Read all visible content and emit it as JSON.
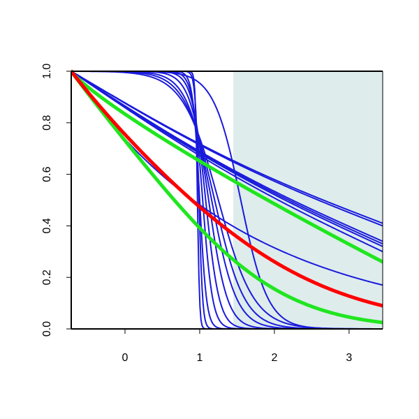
{
  "chart_data": {
    "type": "line",
    "title": "",
    "xlabel": "",
    "ylabel": "",
    "xlim": [
      -0.72,
      3.45
    ],
    "ylim": [
      0,
      1
    ],
    "x_ticks": [
      0,
      1,
      2,
      3
    ],
    "y_ticks": [
      0.0,
      0.2,
      0.4,
      0.6,
      0.8,
      1.0
    ],
    "x_tick_labels": [
      "0",
      "1",
      "2",
      "3"
    ],
    "y_tick_labels": [
      "0.0",
      "0.2",
      "0.4",
      "0.6",
      "0.8",
      "1.0"
    ],
    "grid": false,
    "shaded_region": {
      "x_from": 1.45,
      "x_to": 3.45,
      "color": "#deecec"
    },
    "colors": {
      "blue": "#1a1adc",
      "red": "#ff0000",
      "green": "#1fe61f",
      "axis": "#000000"
    },
    "series_groups": [
      {
        "label_visible": false,
        "color": "blue",
        "kind": "logistic_drop",
        "params": [
          {
            "mid": 0.97,
            "k": 70
          },
          {
            "mid": 0.99,
            "k": 40
          },
          {
            "mid": 1.0,
            "k": 22
          },
          {
            "mid": 1.04,
            "k": 15
          },
          {
            "mid": 1.08,
            "k": 11
          },
          {
            "mid": 1.12,
            "k": 8
          },
          {
            "mid": 1.16,
            "k": 6
          },
          {
            "mid": 1.2,
            "k": 5
          },
          {
            "mid": 1.25,
            "k": 4.2
          },
          {
            "mid": 1.55,
            "k": 5.5
          }
        ]
      },
      {
        "label_visible": false,
        "color": "blue",
        "kind": "linear_like",
        "end_values": [
          0.41,
          0.4,
          0.34,
          0.33,
          0.32,
          0.3
        ]
      },
      {
        "label_visible": false,
        "color": "blue",
        "kind": "exp_decay",
        "end_values": [
          0.17
        ]
      },
      {
        "label_visible": false,
        "color": "green",
        "kind": "exp_decay",
        "end_values": [
          0.26,
          0.025
        ]
      },
      {
        "label_visible": false,
        "color": "red",
        "kind": "exp_decay",
        "end_values": [
          0.09
        ]
      }
    ]
  }
}
